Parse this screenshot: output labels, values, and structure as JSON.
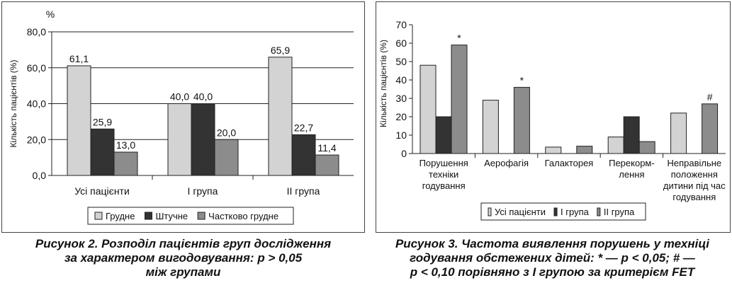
{
  "chart_data": [
    {
      "type": "bar",
      "unit_label": "%",
      "ylabel": "Кількість пацієнтів (%)",
      "ylim": [
        0,
        80
      ],
      "yticks": [
        "0,0",
        "20,0",
        "40,0",
        "60,0",
        "80,0"
      ],
      "ytick_values": [
        0,
        20,
        40,
        60,
        80
      ],
      "grid": true,
      "legend_position": "bottom",
      "categories": [
        "Усі пацієнти",
        "І група",
        "ІІ група"
      ],
      "series": [
        {
          "name": "Грудне",
          "values": [
            61.1,
            40.0,
            65.9
          ],
          "labels": [
            "61,1",
            "40,0",
            "65,9"
          ],
          "color": "#d3d3d3"
        },
        {
          "name": "Штучне",
          "values": [
            25.9,
            40.0,
            22.7
          ],
          "labels": [
            "25,9",
            "40,0",
            "22,7"
          ],
          "color": "#333333"
        },
        {
          "name": "Частково грудне",
          "values": [
            13.0,
            20.0,
            11.4
          ],
          "labels": [
            "13,0",
            "20,0",
            "11,4"
          ],
          "color": "#8c8c8c"
        }
      ],
      "caption_lines": [
        "Рисунок 2. Розподіл пацієнтів груп дослідження",
        "за характером вигодовування: p > 0,05",
        "між групами"
      ]
    },
    {
      "type": "bar",
      "ylabel": "Кількість пацієнтів (%)",
      "ylim": [
        0,
        70
      ],
      "yticks": [
        "0",
        "10",
        "20",
        "30",
        "40",
        "50",
        "60",
        "70"
      ],
      "ytick_values": [
        0,
        10,
        20,
        30,
        40,
        50,
        60,
        70
      ],
      "grid": false,
      "legend_position": "bottom",
      "categories": [
        [
          "Порушення",
          "техніки",
          "годування"
        ],
        [
          "Аерофагія"
        ],
        [
          "Галакторея"
        ],
        [
          "Перекорм-",
          "лення"
        ],
        [
          "Неправільне",
          "положення",
          "дитини під час",
          "годування"
        ]
      ],
      "series": [
        {
          "name": "Усі пацієнти",
          "values": [
            48,
            29,
            3.5,
            9,
            22
          ],
          "color": "#d3d3d3"
        },
        {
          "name": "І група",
          "values": [
            20,
            0,
            0,
            20,
            0
          ],
          "color": "#333333"
        },
        {
          "name": "ІІ група",
          "values": [
            59,
            36,
            4,
            6.5,
            27
          ],
          "color": "#8c8c8c"
        }
      ],
      "annotations": [
        {
          "category": 0,
          "series": 2,
          "text": "*"
        },
        {
          "category": 1,
          "series": 2,
          "text": "*"
        },
        {
          "category": 4,
          "series": 2,
          "text": "#"
        }
      ],
      "caption_lines": [
        "Рисунок 3. Частота виявлення порушень у техніці",
        "годування обстежених дітей: * — p < 0,05; # —",
        "p < 0,10 порівняно з І групою за критерієм FET"
      ]
    }
  ]
}
